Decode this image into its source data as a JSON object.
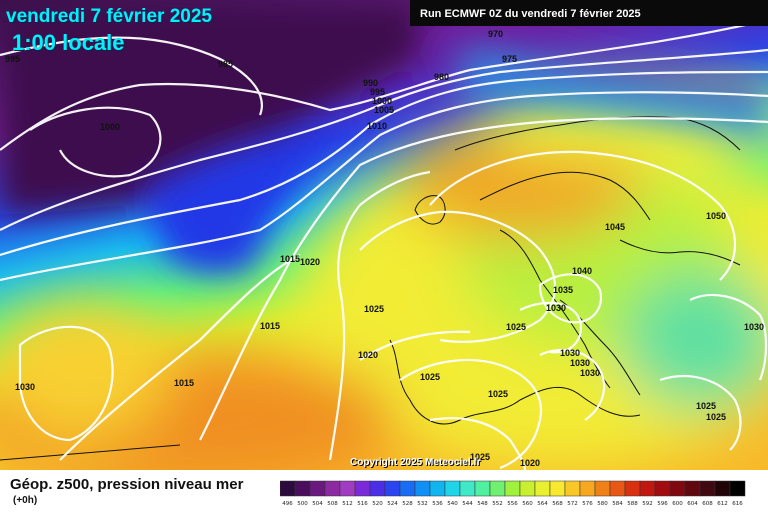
{
  "header": {
    "date_line": "vendredi 7 février 2025",
    "time_line": "1:00 locale",
    "run_info": "Run ECMWF 0Z du vendredi 7 février 2025"
  },
  "footer": {
    "title": "Géop. z500, pression niveau mer",
    "subtitle": "(+0h)",
    "copyright": "Copyright 2025 Meteociel.fr"
  },
  "legend": {
    "values": [
      "496",
      "500",
      "504",
      "508",
      "512",
      "516",
      "520",
      "524",
      "528",
      "532",
      "536",
      "540",
      "544",
      "548",
      "552",
      "556",
      "560",
      "564",
      "568",
      "572",
      "576",
      "580",
      "584",
      "588",
      "592",
      "596",
      "600",
      "604",
      "608",
      "612",
      "616"
    ],
    "colors": [
      "#2b0a3d",
      "#4a0f5c",
      "#6a1a7e",
      "#8c2ba0",
      "#a03cc0",
      "#7a2ad8",
      "#4b2fe6",
      "#2a45f0",
      "#1a6cf5",
      "#1090f5",
      "#10b4f0",
      "#20d4e8",
      "#40e8c8",
      "#50f0a0",
      "#70f070",
      "#a0f040",
      "#c8f030",
      "#e8f030",
      "#f8e830",
      "#f8c828",
      "#f8a820",
      "#f08018",
      "#e85814",
      "#d83010",
      "#c01810",
      "#a00c10",
      "#800810",
      "#600810",
      "#400810",
      "#200408",
      "#000000"
    ]
  },
  "isobars": [
    {
      "label": "995"
    },
    {
      "label": "985"
    },
    {
      "label": "970"
    },
    {
      "label": "975"
    },
    {
      "label": "990"
    },
    {
      "label": "995"
    },
    {
      "label": "1000"
    },
    {
      "label": "1005"
    },
    {
      "label": "980"
    },
    {
      "label": "1000"
    },
    {
      "label": "1010"
    },
    {
      "label": "1015"
    },
    {
      "label": "1020"
    },
    {
      "label": "1025"
    },
    {
      "label": "1015"
    },
    {
      "label": "1020"
    },
    {
      "label": "1030"
    },
    {
      "label": "1015"
    },
    {
      "label": "1025"
    },
    {
      "label": "1025"
    },
    {
      "label": "1030"
    },
    {
      "label": "1035"
    },
    {
      "label": "1040"
    },
    {
      "label": "1045"
    },
    {
      "label": "1050"
    },
    {
      "label": "1030"
    },
    {
      "label": "1030"
    },
    {
      "label": "1030"
    },
    {
      "label": "1025"
    },
    {
      "label": "1025"
    },
    {
      "label": "1030"
    },
    {
      "label": "1025"
    },
    {
      "label": "1025"
    },
    {
      "label": "1020"
    }
  ]
}
